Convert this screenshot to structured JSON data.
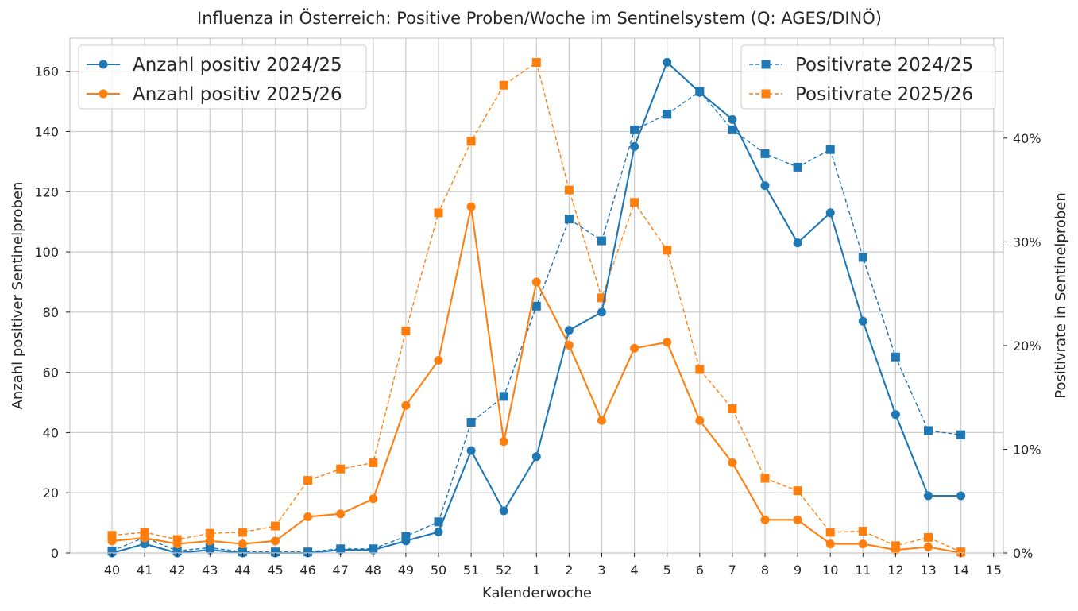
{
  "chart_data": {
    "type": "line",
    "title": "Influenza in Österreich: Positive Proben/Woche im Sentinelsystem (Q: AGES/DINÖ)",
    "xlabel": "Kalenderwoche",
    "ylabel": "Anzahl positiver Sentinelproben",
    "y2label": "Positivrate in Sentinelproben",
    "x_ticks": [
      "40",
      "41",
      "42",
      "43",
      "44",
      "45",
      "46",
      "47",
      "48",
      "49",
      "50",
      "51",
      "52",
      "1",
      "2",
      "3",
      "4",
      "5",
      "6",
      "7",
      "8",
      "9",
      "10",
      "11",
      "12",
      "13",
      "14",
      "15"
    ],
    "ylim": [
      0,
      171
    ],
    "y_ticks": [
      0,
      20,
      40,
      60,
      80,
      100,
      120,
      140,
      160
    ],
    "y2lim": [
      0,
      0.4964
    ],
    "y2_ticks": [
      0,
      0.1,
      0.2,
      0.3,
      0.4
    ],
    "y2_tick_labels": [
      "0%",
      "10%",
      "20%",
      "30%",
      "40%"
    ],
    "grid": true,
    "legends": [
      {
        "placement": "top-left",
        "entries": [
          "Anzahl positiv 2024/25",
          "Anzahl positiv 2025/26"
        ]
      },
      {
        "placement": "top-right",
        "entries": [
          "Positivrate 2024/25",
          "Positivrate 2025/26"
        ]
      }
    ],
    "series": [
      {
        "name": "Anzahl positiv 2024/25",
        "axis": "left",
        "color": "#1f77b4",
        "marker": "circle",
        "line": "solid",
        "x": [
          "40",
          "41",
          "42",
          "43",
          "44",
          "45",
          "46",
          "47",
          "48",
          "49",
          "50",
          "51",
          "52",
          "1",
          "2",
          "3",
          "4",
          "5",
          "6",
          "7",
          "8",
          "9",
          "10",
          "11",
          "12",
          "13",
          "14"
        ],
        "values": [
          0,
          3,
          0,
          1,
          0,
          0,
          0,
          1,
          1,
          4,
          7,
          34,
          14,
          32,
          74,
          80,
          135,
          163,
          153,
          144,
          122,
          103,
          113,
          77,
          46,
          19,
          19
        ]
      },
      {
        "name": "Anzahl positiv 2025/26",
        "axis": "left",
        "color": "#ff7f0e",
        "marker": "circle",
        "line": "solid",
        "x": [
          "40",
          "41",
          "42",
          "43",
          "44",
          "45",
          "46",
          "47",
          "48",
          "49",
          "50",
          "51",
          "52",
          "1",
          "2",
          "3",
          "4",
          "5",
          "6",
          "7",
          "8",
          "9",
          "10",
          "11",
          "12",
          "13",
          "14"
        ],
        "values": [
          4,
          5,
          3,
          4,
          3,
          4,
          12,
          13,
          18,
          49,
          64,
          115,
          37,
          90,
          69,
          44,
          68,
          70,
          44,
          30,
          11,
          11,
          3,
          3,
          1,
          2,
          0
        ]
      },
      {
        "name": "Positivrate 2024/25",
        "axis": "right",
        "color": "#1f77b4",
        "marker": "square",
        "line": "dashed",
        "x": [
          "40",
          "41",
          "42",
          "43",
          "44",
          "45",
          "46",
          "47",
          "48",
          "49",
          "50",
          "51",
          "52",
          "1",
          "2",
          "3",
          "4",
          "5",
          "6",
          "7",
          "8",
          "9",
          "10",
          "11",
          "12",
          "13",
          "14"
        ],
        "values": [
          0.002,
          0.015,
          0.002,
          0.005,
          0.001,
          0.001,
          0.001,
          0.004,
          0.004,
          0.016,
          0.03,
          0.126,
          0.151,
          0.238,
          0.322,
          0.301,
          0.408,
          0.423,
          0.445,
          0.408,
          0.385,
          0.372,
          0.389,
          0.285,
          0.189,
          0.118,
          0.114
        ]
      },
      {
        "name": "Positivrate 2025/26",
        "axis": "right",
        "color": "#ff7f0e",
        "marker": "square",
        "line": "dashed",
        "x": [
          "40",
          "41",
          "42",
          "43",
          "44",
          "45",
          "46",
          "47",
          "48",
          "49",
          "50",
          "51",
          "52",
          "1",
          "2",
          "3",
          "4",
          "5",
          "6",
          "7",
          "8",
          "9",
          "10",
          "11",
          "12",
          "13",
          "14"
        ],
        "values": [
          0.017,
          0.02,
          0.013,
          0.019,
          0.02,
          0.026,
          0.07,
          0.081,
          0.087,
          0.214,
          0.328,
          0.397,
          0.451,
          0.473,
          0.35,
          0.246,
          0.338,
          0.292,
          0.177,
          0.139,
          0.072,
          0.06,
          0.02,
          0.021,
          0.007,
          0.015,
          0.001
        ]
      }
    ]
  }
}
